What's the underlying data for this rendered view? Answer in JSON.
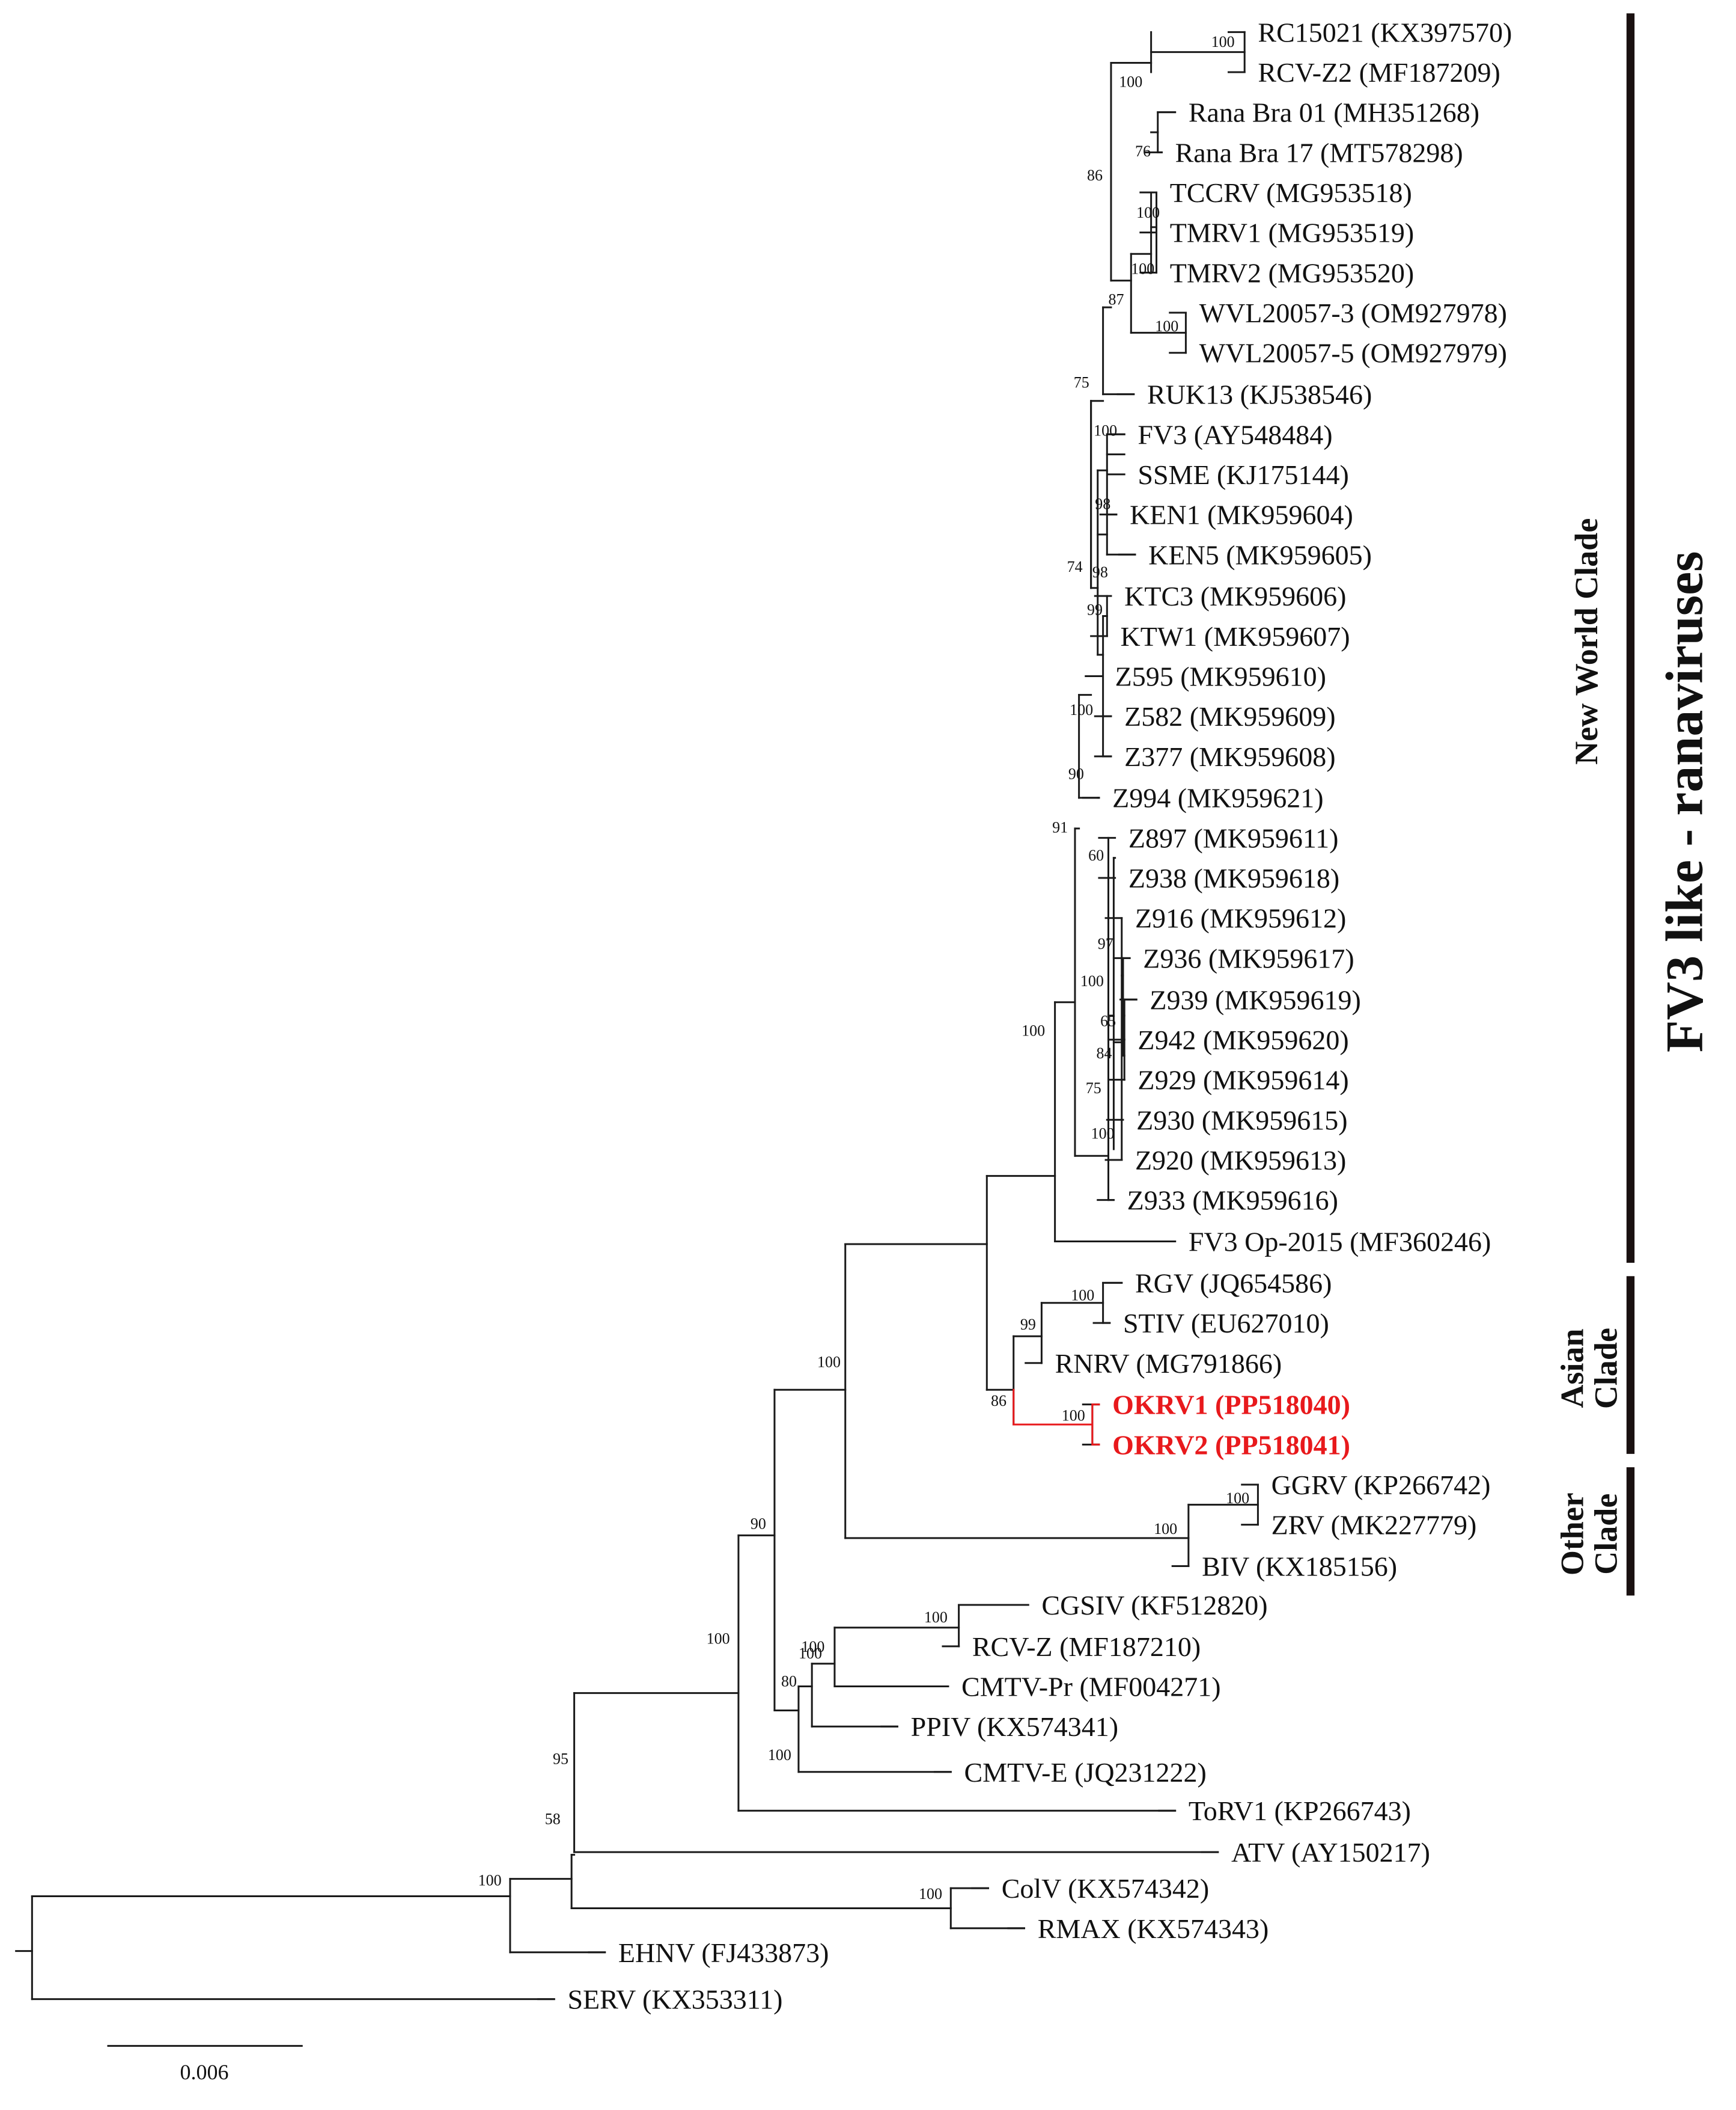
{
  "figure": {
    "title": "FV3 like - ranaviruses",
    "scale_bar_label": "0.006",
    "highlight_color": "#e8191c",
    "line_color": "#1a1a1a"
  },
  "clades": [
    {
      "id": "new-world",
      "lines": [
        "New World Clade"
      ]
    },
    {
      "id": "asian",
      "lines": [
        "Asian",
        "Clade"
      ]
    },
    {
      "id": "other",
      "lines": [
        "Other",
        "Clade"
      ]
    }
  ],
  "taxa": [
    {
      "id": "RC15021",
      "label": "RC15021 (KX397570)"
    },
    {
      "id": "RCVZ2",
      "label": "RCV-Z2 (MF187209)"
    },
    {
      "id": "RanaBra01",
      "label": "Rana Bra 01 (MH351268)"
    },
    {
      "id": "RanaBra17",
      "label": "Rana Bra 17 (MT578298)"
    },
    {
      "id": "TCCRV",
      "label": "TCCRV (MG953518)"
    },
    {
      "id": "TMRV1",
      "label": "TMRV1 (MG953519)"
    },
    {
      "id": "TMRV2",
      "label": "TMRV2 (MG953520)"
    },
    {
      "id": "WVL3",
      "label": "WVL20057-3 (OM927978)"
    },
    {
      "id": "WVL5",
      "label": "WVL20057-5 (OM927979)"
    },
    {
      "id": "RUK13",
      "label": "RUK13 (KJ538546)"
    },
    {
      "id": "FV3",
      "label": "FV3 (AY548484)"
    },
    {
      "id": "SSME",
      "label": "SSME (KJ175144)"
    },
    {
      "id": "KEN1",
      "label": "KEN1 (MK959604)"
    },
    {
      "id": "KEN5",
      "label": "KEN5 (MK959605)"
    },
    {
      "id": "KTC3",
      "label": "KTC3 (MK959606)"
    },
    {
      "id": "KTW1",
      "label": "KTW1 (MK959607)"
    },
    {
      "id": "Z595",
      "label": "Z595 (MK959610)"
    },
    {
      "id": "Z582",
      "label": "Z582 (MK959609)"
    },
    {
      "id": "Z377",
      "label": "Z377 (MK959608)"
    },
    {
      "id": "Z994",
      "label": "Z994 (MK959621)"
    },
    {
      "id": "Z897",
      "label": "Z897 (MK959611)"
    },
    {
      "id": "Z938",
      "label": "Z938 (MK959618)"
    },
    {
      "id": "Z916",
      "label": "Z916 (MK959612)"
    },
    {
      "id": "Z936",
      "label": "Z936 (MK959617)"
    },
    {
      "id": "Z939",
      "label": "Z939 (MK959619)"
    },
    {
      "id": "Z942",
      "label": "Z942 (MK959620)"
    },
    {
      "id": "Z929",
      "label": "Z929 (MK959614)"
    },
    {
      "id": "Z930",
      "label": "Z930 (MK959615)"
    },
    {
      "id": "Z920",
      "label": "Z920 (MK959613)"
    },
    {
      "id": "Z933",
      "label": "Z933 (MK959616)"
    },
    {
      "id": "FV3Op",
      "label": "FV3 Op-2015 (MF360246)"
    },
    {
      "id": "RGV",
      "label": "RGV (JQ654586)"
    },
    {
      "id": "STIV",
      "label": "STIV (EU627010)"
    },
    {
      "id": "RNRV",
      "label": "RNRV (MG791866)"
    },
    {
      "id": "OKRV1",
      "label": "OKRV1 (PP518040)",
      "highlight": true
    },
    {
      "id": "OKRV2",
      "label": "OKRV2 (PP518041)",
      "highlight": true
    },
    {
      "id": "GGRV",
      "label": "GGRV (KP266742)"
    },
    {
      "id": "ZRV",
      "label": "ZRV (MK227779)"
    },
    {
      "id": "BIV",
      "label": "BIV (KX185156)"
    },
    {
      "id": "CGSIV",
      "label": "CGSIV (KF512820)"
    },
    {
      "id": "RCVZ",
      "label": "RCV-Z (MF187210)"
    },
    {
      "id": "CMTVPr",
      "label": "CMTV-Pr (MF004271)"
    },
    {
      "id": "PPIV",
      "label": "PPIV (KX574341)"
    },
    {
      "id": "CMTVE",
      "label": "CMTV-E (JQ231222)"
    },
    {
      "id": "ToRV1",
      "label": "ToRV1 (KP266743)"
    },
    {
      "id": "ATV",
      "label": "ATV (AY150217)"
    },
    {
      "id": "ColV",
      "label": "ColV (KX574342)"
    },
    {
      "id": "RMAX",
      "label": "RMAX (KX574343)"
    },
    {
      "id": "EHNV",
      "label": "EHNV (FJ433873)"
    },
    {
      "id": "SERV",
      "label": "SERV (KX353311)"
    }
  ],
  "bootstrap": [
    {
      "node": "root_in",
      "value": "100"
    },
    {
      "node": "n58",
      "value": "58"
    },
    {
      "node": "n95",
      "value": "95"
    },
    {
      "node": "colv_rmax",
      "value": "100"
    },
    {
      "node": "n100a",
      "value": "100"
    },
    {
      "node": "n90",
      "value": "90"
    },
    {
      "node": "n100b",
      "value": "100"
    },
    {
      "node": "n100c",
      "value": "100"
    },
    {
      "node": "nw_asia",
      "value": "86"
    },
    {
      "node": "new_world",
      "value": "100"
    },
    {
      "node": "nw_core",
      "value": "91"
    },
    {
      "node": "nw_upper",
      "value": "74"
    },
    {
      "node": "nw_upper2",
      "value": "75"
    },
    {
      "node": "n86",
      "value": "86"
    },
    {
      "node": "rc_pair",
      "value": "100"
    },
    {
      "node": "rana_grp",
      "value": "100"
    },
    {
      "node": "rana_pair",
      "value": "76"
    },
    {
      "node": "n87",
      "value": "87"
    },
    {
      "node": "tmrv_grp",
      "value": "100"
    },
    {
      "node": "tmrv_pair",
      "value": "100"
    },
    {
      "node": "wvl_pair",
      "value": "100"
    },
    {
      "node": "fv3_ssme",
      "value": "100"
    },
    {
      "node": "ken_grp",
      "value": "98"
    },
    {
      "node": "ken_grp2",
      "value": "98"
    },
    {
      "node": "z_grp",
      "value": "90"
    },
    {
      "node": "kt_grp",
      "value": "100"
    },
    {
      "node": "kt_pair",
      "value": "99"
    },
    {
      "node": "z897_grp",
      "value": "60"
    },
    {
      "node": "z916_grp",
      "value": "97"
    },
    {
      "node": "z936_grp",
      "value": "100"
    },
    {
      "node": "z939_grp",
      "value": "65"
    },
    {
      "node": "z942_grp",
      "value": "84"
    },
    {
      "node": "z929_grp",
      "value": "75"
    },
    {
      "node": "z930_grp",
      "value": "100"
    },
    {
      "node": "asian",
      "value": "99"
    },
    {
      "node": "rgv_stiv",
      "value": "100"
    },
    {
      "node": "okrv",
      "value": "100"
    },
    {
      "node": "other",
      "value": "100"
    },
    {
      "node": "ggrv_zrv",
      "value": "100"
    },
    {
      "node": "cgsiv_rcvz",
      "value": "100"
    },
    {
      "node": "cmtv_grp",
      "value": "100"
    },
    {
      "node": "cmtv_grp2",
      "value": "80"
    },
    {
      "node": "cmtv_grp3",
      "value": "100"
    }
  ]
}
